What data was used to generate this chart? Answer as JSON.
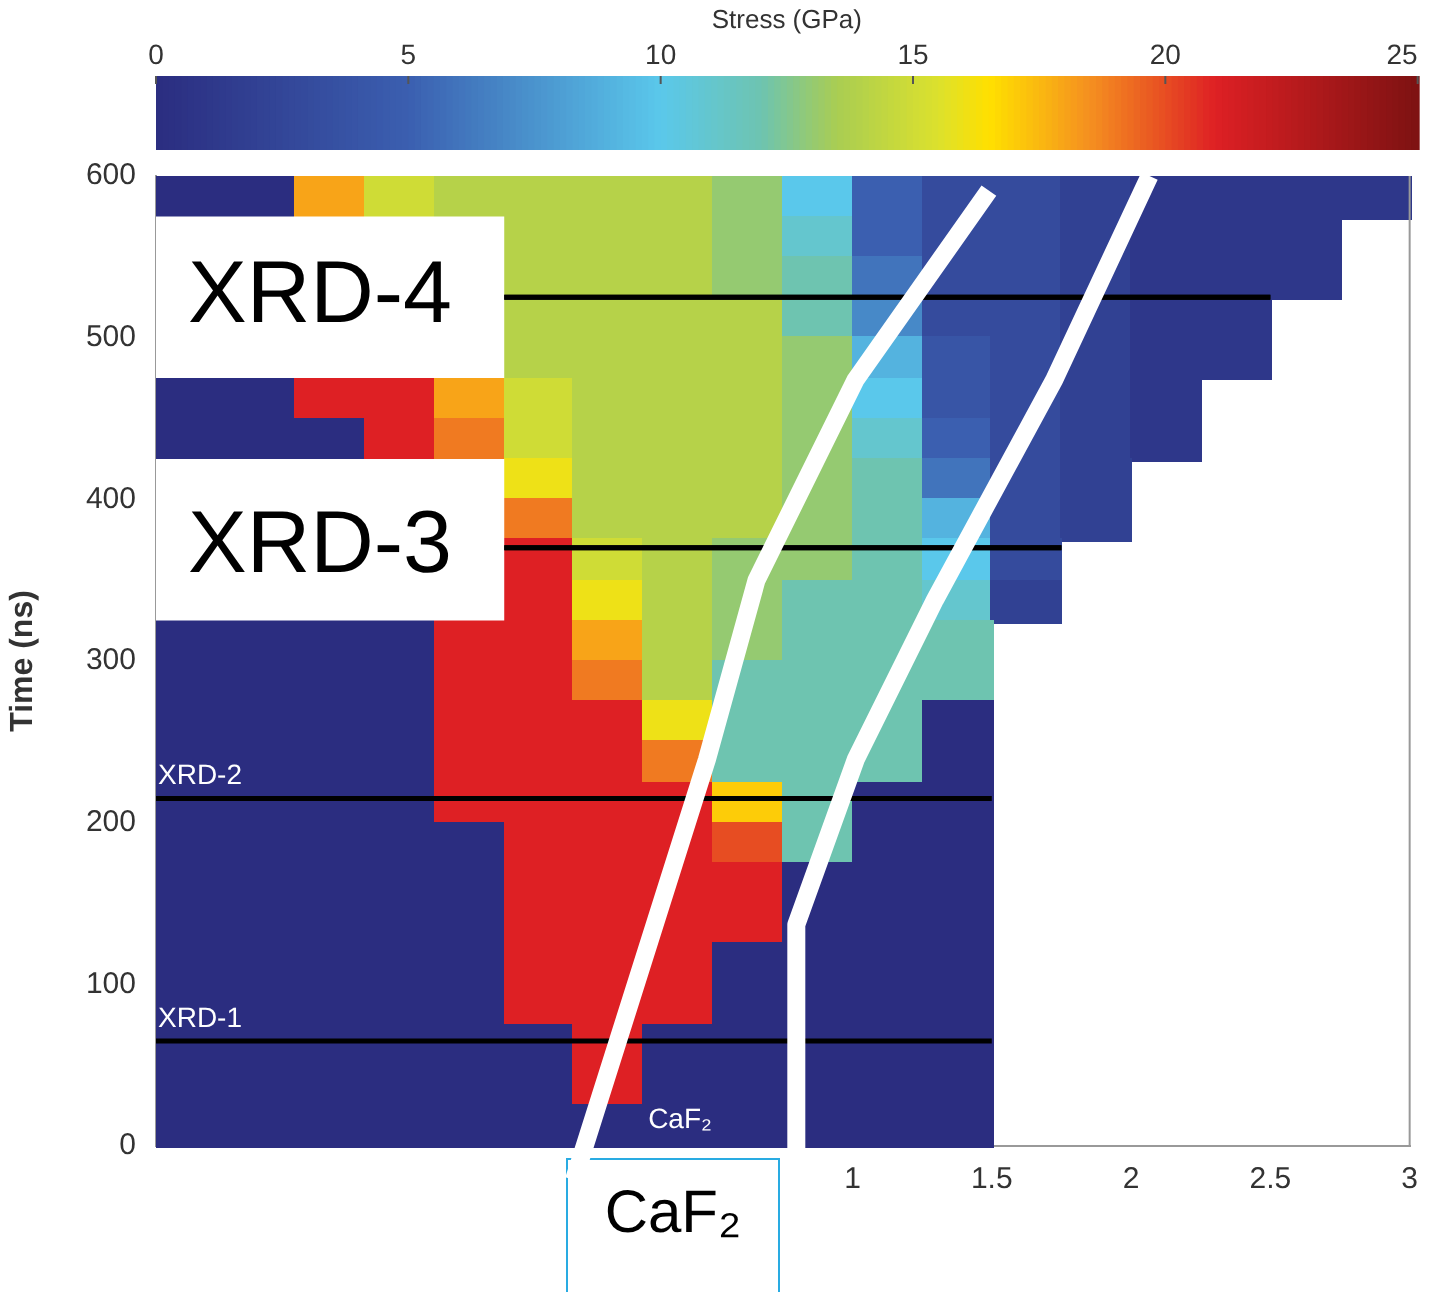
{
  "chart_data": {
    "type": "heatmap",
    "ylabel": "Time (ns)",
    "clabel": "Stress (GPa)",
    "clim": [
      0,
      25
    ],
    "cticks": [
      0,
      5,
      10,
      15,
      20,
      25
    ],
    "xlim": [
      -1.5,
      3
    ],
    "xticks": [
      1,
      1.5,
      2,
      2.5,
      3
    ],
    "ylim": [
      0,
      600
    ],
    "yticks": [
      0,
      100,
      200,
      300,
      400,
      500,
      600
    ],
    "grid": false,
    "legend": false,
    "x": [
      -1.375,
      -1.125,
      -0.875,
      -0.625,
      -0.375,
      -0.125,
      0.125,
      0.375,
      0.625,
      0.875,
      1.125,
      1.375,
      1.625,
      1.875,
      2.125,
      2.375,
      2.625,
      2.875
    ],
    "cells": [
      [
        0,
        0,
        18,
        15,
        14,
        14,
        14,
        14,
        13,
        10,
        5,
        3,
        3,
        2,
        1,
        1,
        1,
        1
      ],
      [
        null,
        null,
        null,
        null,
        null,
        14,
        14,
        14,
        13,
        11,
        5,
        3,
        3,
        2,
        1,
        1,
        1,
        null
      ],
      [
        null,
        null,
        null,
        null,
        null,
        14,
        14,
        14,
        13,
        12,
        6,
        3,
        3,
        2,
        1,
        1,
        1,
        null
      ],
      [
        null,
        null,
        null,
        null,
        null,
        14,
        14,
        14,
        14,
        12,
        7,
        3,
        3,
        2,
        1,
        1,
        null,
        null
      ],
      [
        null,
        null,
        null,
        null,
        null,
        14,
        14,
        14,
        14,
        13,
        9,
        4,
        3,
        2,
        1,
        1,
        null,
        null
      ],
      [
        0,
        0,
        21,
        21,
        18,
        15,
        14,
        14,
        14,
        13,
        10,
        4,
        3,
        2,
        1,
        null,
        null,
        null
      ],
      [
        0,
        0,
        0,
        21,
        19,
        15,
        14,
        14,
        14,
        13,
        11,
        5,
        3,
        2,
        1,
        null,
        null,
        null
      ],
      [
        null,
        null,
        null,
        null,
        null,
        16,
        14,
        14,
        14,
        13,
        12,
        6,
        3,
        2,
        null,
        null,
        null,
        null
      ],
      [
        null,
        null,
        null,
        null,
        null,
        19,
        14,
        14,
        14,
        13,
        12,
        9,
        3,
        2,
        null,
        null,
        null,
        null
      ],
      [
        null,
        null,
        null,
        null,
        null,
        21,
        15,
        14,
        13,
        13,
        12,
        10,
        3,
        null,
        null,
        null,
        null,
        null
      ],
      [
        null,
        null,
        null,
        null,
        null,
        21,
        16,
        14,
        13,
        12,
        12,
        11,
        2,
        null,
        null,
        null,
        null,
        null
      ],
      [
        0,
        0,
        0,
        0,
        21,
        21,
        18,
        14,
        13,
        12,
        12,
        12,
        null,
        null,
        null,
        null,
        null,
        null
      ],
      [
        0,
        0,
        0,
        0,
        21,
        21,
        19,
        14,
        12,
        12,
        12,
        12,
        null,
        null,
        null,
        null,
        null,
        null
      ],
      [
        0,
        0,
        0,
        0,
        21,
        21,
        21,
        16,
        12,
        12,
        12,
        0,
        null,
        null,
        null,
        null,
        null,
        null
      ],
      [
        0,
        0,
        0,
        0,
        21,
        21,
        21,
        19,
        12,
        12,
        12,
        0,
        null,
        null,
        null,
        null,
        null,
        null
      ],
      [
        0,
        0,
        0,
        0,
        21,
        21,
        21,
        21,
        17,
        12,
        0,
        0,
        null,
        null,
        null,
        null,
        null,
        null
      ],
      [
        0,
        0,
        0,
        0,
        0,
        21,
        21,
        21,
        20,
        12,
        0,
        0,
        null,
        null,
        null,
        null,
        null,
        null
      ],
      [
        0,
        0,
        0,
        0,
        0,
        21,
        21,
        21,
        21,
        0,
        0,
        0,
        null,
        null,
        null,
        null,
        null,
        null
      ],
      [
        0,
        0,
        0,
        0,
        0,
        21,
        21,
        21,
        21,
        0,
        0,
        0,
        null,
        null,
        null,
        null,
        null,
        null
      ],
      [
        0,
        0,
        0,
        0,
        0,
        21,
        21,
        21,
        0,
        0,
        0,
        0,
        null,
        null,
        null,
        null,
        null,
        null
      ],
      [
        0,
        0,
        0,
        0,
        0,
        21,
        21,
        21,
        0,
        0,
        0,
        0,
        null,
        null,
        null,
        null,
        null,
        null
      ],
      [
        0,
        0,
        0,
        0,
        0,
        0,
        21,
        0,
        0,
        0,
        0,
        0,
        null,
        null,
        null,
        null,
        null,
        null
      ],
      [
        0,
        0,
        0,
        0,
        0,
        0,
        21,
        0,
        0,
        0,
        0,
        0,
        null,
        null,
        null,
        null,
        null,
        null
      ],
      [
        0,
        0,
        0,
        0,
        0,
        0,
        0,
        0,
        0,
        0,
        0,
        0,
        null,
        null,
        null,
        null,
        null,
        null
      ]
    ],
    "ref_lines": [
      {
        "axis": "y",
        "value": 65,
        "label": "XRD-1",
        "color": "#000000"
      },
      {
        "axis": "y",
        "value": 215,
        "label": "XRD-2",
        "color": "#000000"
      },
      {
        "axis": "y",
        "value": 370,
        "label": "XRD-3",
        "color": "#000000"
      },
      {
        "axis": "y",
        "value": 525,
        "label": "XRD-4",
        "color": "#000000"
      }
    ],
    "annotations": [
      "CaF₂",
      "CaF₂"
    ]
  }
}
